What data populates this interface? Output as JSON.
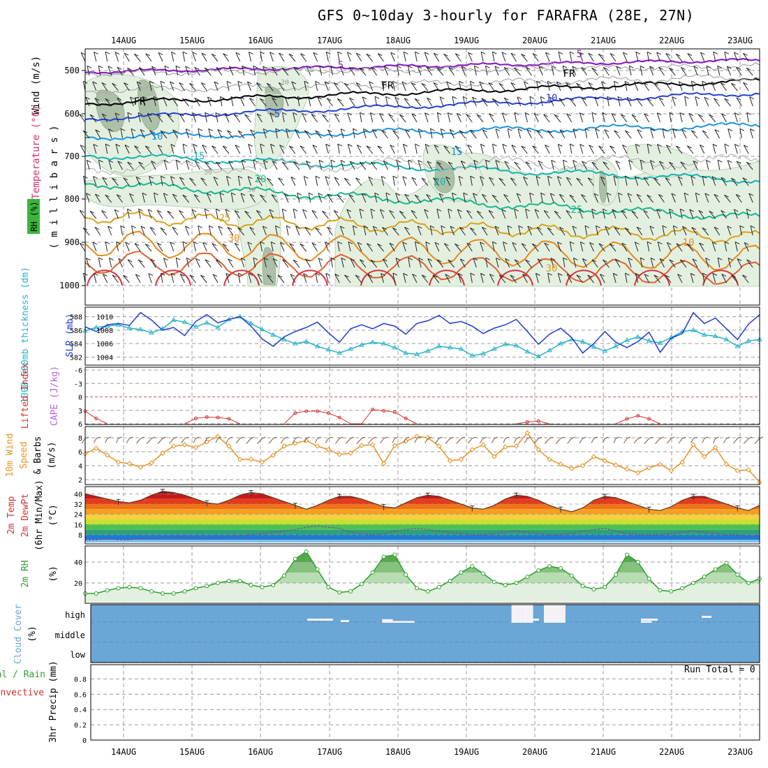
{
  "title": "GFS 0~10day 3-hourly for FARAFRA (28E, 27N)",
  "dates": [
    "14AUG",
    "15AUG",
    "16AUG",
    "17AUG",
    "18AUG",
    "19AUG",
    "20AUG",
    "21AUG",
    "22AUG",
    "23AUG"
  ],
  "run_total": "Run Total = 0",
  "colors": {
    "temp_red": "#d63030",
    "rh_green": "#2ea02e",
    "cyan": "#27b3c8",
    "slp_blue": "#1f3bd0",
    "cape_purple": "#b565d8",
    "orange": "#e59224",
    "cloud_blue": "#6aa6d6"
  },
  "panels": {
    "upper": {
      "ylabel_wind": "Wind (m/s)",
      "ylabel_temp": "Temperature (°C)",
      "ylabel_mb": "( m i l l i b a r s )",
      "rh_label": "RH (%)",
      "yticks": [
        "500",
        "600",
        "700",
        "800",
        "900",
        "1000"
      ],
      "contour_labels": [
        "5",
        "FR",
        "FR",
        "FR",
        "5",
        "5",
        "10",
        "10",
        "15",
        "15",
        "20",
        "20",
        "25",
        "25",
        "30",
        "30",
        "10",
        "10",
        "30",
        "30",
        "30",
        "30"
      ]
    },
    "thickness": {
      "ylabel_left": "1000-500mb thickness (dm)",
      "ylabel_right": "SLP (mb)",
      "yticks_left": [
        "588",
        "586",
        "584",
        "582"
      ],
      "yticks_right": [
        "1010",
        "1008",
        "1006",
        "1004"
      ]
    },
    "lifted": {
      "ylabel_left": "Lifted Index",
      "ylabel_right": "CAPE (J/kg)",
      "yticks": [
        "-6",
        "-3",
        "0",
        "3",
        "6"
      ]
    },
    "wind10": {
      "ylabel1": "10m Wind",
      "ylabel2": "Speed",
      "ylabel3": "& Barbs",
      "ylabel_unit": "(m/s)",
      "yticks": [
        "8",
        "6",
        "4",
        "2"
      ]
    },
    "temp2m": {
      "ylabel1": "2m Temp",
      "ylabel2": "2m DewPt",
      "ylabel3": "(6hr Min/Max)",
      "ylabel_unit": "(°C)",
      "yticks": [
        "40",
        "32",
        "24",
        "16",
        "8"
      ]
    },
    "rh2m": {
      "ylabel": "2m RH",
      "ylabel_unit": "(%)",
      "yticks": [
        "40",
        "20"
      ]
    },
    "cloud": {
      "ylabel": "Cloud Cover",
      "ylabel_unit": "(%)",
      "levels": [
        "high",
        "middle",
        "low"
      ]
    },
    "precip": {
      "ylabel_left1": "Total / Rain",
      "ylabel_left2": "Convective",
      "ylabel": "3hr Precip (mm)",
      "yticks": [
        "0.8",
        "0.6",
        "0.4",
        "0.2",
        "0"
      ]
    }
  },
  "chart_data": [
    {
      "type": "line",
      "name": "thickness-slp",
      "x_labels": [
        "14AUG",
        "15AUG",
        "16AUG",
        "17AUG",
        "18AUG",
        "19AUG",
        "20AUG",
        "21AUG",
        "22AUG",
        "23AUG"
      ],
      "series": [
        {
          "name": "1000-500mb thickness (dm)",
          "axis": "left",
          "values": [
            585.9,
            586.4,
            586.6,
            586.8,
            586.3,
            586.1,
            585.6,
            586.2,
            587.5,
            587.2,
            586.5,
            587.1,
            586.4,
            587.6,
            588.0,
            587.0,
            586.1,
            585.3,
            584.6,
            584.0,
            584.3,
            583.6,
            583.1,
            582.6,
            583.2,
            583.8,
            584.2,
            584.0,
            583.4,
            582.6,
            582.4,
            582.9,
            583.6,
            583.4,
            583.2,
            582.2,
            582.5,
            583.2,
            583.9,
            583.7,
            582.8,
            582.1,
            583.0,
            584.0,
            584.6,
            584.3,
            583.5,
            582.9,
            583.6,
            584.5,
            585.0,
            584.4,
            584.1,
            584.9,
            585.8,
            586.0,
            585.3,
            585.1,
            584.6,
            583.6,
            584.4,
            584.6
          ]
        },
        {
          "name": "SLP (mb)",
          "axis": "right",
          "values": [
            1008.5,
            1007.8,
            1008.8,
            1009.0,
            1008.7,
            1010.6,
            1009.5,
            1008.0,
            1008.4,
            1007.2,
            1009.3,
            1010.3,
            1009.1,
            1009.6,
            1010.0,
            1008.6,
            1006.7,
            1005.6,
            1007.0,
            1007.8,
            1008.4,
            1009.2,
            1007.6,
            1006.2,
            1008.2,
            1008.8,
            1008.2,
            1009.0,
            1008.6,
            1007.4,
            1009.0,
            1009.4,
            1010.2,
            1009.0,
            1009.3,
            1008.6,
            1007.5,
            1008.3,
            1008.8,
            1009.6,
            1007.8,
            1005.9,
            1007.4,
            1008.3,
            1006.9,
            1004.6,
            1006.0,
            1007.8,
            1006.2,
            1005.4,
            1006.3,
            1007.7,
            1004.7,
            1006.8,
            1007.5,
            1010.6,
            1009.0,
            1009.8,
            1008.2,
            1006.6,
            1008.9,
            1010.3
          ]
        }
      ]
    },
    {
      "type": "line",
      "name": "lifted-index",
      "series": [
        {
          "name": "Lifted Index",
          "values": [
            3.2,
            4.8,
            6,
            6,
            6,
            6,
            6,
            6,
            6,
            6,
            4.8,
            4.5,
            4.6,
            4.9,
            6,
            6,
            6,
            6,
            6,
            3.6,
            3.2,
            3.2,
            3.6,
            4.6,
            6,
            6,
            2.8,
            3.1,
            3.4,
            4.8,
            6,
            6,
            6,
            6,
            6,
            6,
            6,
            6,
            6,
            6,
            5.6,
            5.4,
            6,
            6,
            6,
            6,
            6,
            6,
            6,
            4.9,
            4.2,
            4.9,
            6,
            6,
            6,
            6,
            6,
            6,
            6,
            6,
            6,
            6
          ]
        }
      ]
    },
    {
      "type": "line",
      "name": "10m-wind",
      "series": [
        {
          "name": "10m Wind Speed",
          "values": [
            5.7,
            6.5,
            5.5,
            4.5,
            4.3,
            3.8,
            4.4,
            5.8,
            6.8,
            7.0,
            6.6,
            7.4,
            8.2,
            6.8,
            4.9,
            4.9,
            4.5,
            5.5,
            6.8,
            7.2,
            7.6,
            6.8,
            6.3,
            5.6,
            5.8,
            6.9,
            7.0,
            4.3,
            6.9,
            7.5,
            8.2,
            8.0,
            6.8,
            4.7,
            4.9,
            6.3,
            7.0,
            5.3,
            6.7,
            6.8,
            8.7,
            6.3,
            4.9,
            4.2,
            3.6,
            4.0,
            5.3,
            4.7,
            4.1,
            3.5,
            3.0,
            3.7,
            4.2,
            3.3,
            4.5,
            7.0,
            5.3,
            6.6,
            4.2,
            3.3,
            3.4,
            1.6
          ]
        }
      ]
    },
    {
      "type": "area",
      "name": "2m-temp-dewpt",
      "series": [
        {
          "name": "2m Temp",
          "values": [
            40,
            38,
            36,
            34,
            33,
            35,
            39,
            42,
            41,
            39,
            36,
            33,
            32,
            35,
            39,
            41,
            40,
            37,
            34,
            31,
            28,
            31,
            35,
            38,
            38,
            36,
            33,
            30,
            29,
            33,
            37,
            39,
            38,
            35,
            32,
            29,
            28,
            31,
            36,
            39,
            38,
            35,
            31,
            28,
            26,
            29,
            35,
            38,
            37,
            34,
            31,
            28,
            27,
            30,
            35,
            38,
            38,
            35,
            32,
            29,
            27,
            31
          ]
        },
        {
          "name": "2m DewPt",
          "values": [
            4,
            4,
            5,
            4,
            4,
            5,
            5,
            6,
            7,
            6,
            6,
            5,
            6,
            7,
            7,
            8,
            9,
            10,
            11,
            12,
            14,
            15,
            14,
            13,
            10,
            9,
            8,
            9,
            11,
            12,
            13,
            12,
            11,
            10,
            9,
            8,
            8,
            9,
            10,
            11,
            10,
            9,
            8,
            8,
            9,
            11,
            12,
            13,
            11,
            9,
            8,
            8,
            8,
            9,
            10,
            11,
            10,
            9,
            8,
            8,
            7,
            7
          ]
        }
      ]
    },
    {
      "type": "area",
      "name": "2m-rh",
      "series": [
        {
          "name": "2m RH",
          "values": [
            10,
            10,
            13,
            15,
            16,
            15,
            12,
            10,
            10,
            12,
            15,
            17,
            20,
            22,
            22,
            18,
            16,
            18,
            27,
            43,
            50,
            33,
            16,
            11,
            12,
            19,
            30,
            45,
            47,
            28,
            15,
            12,
            16,
            22,
            30,
            36,
            29,
            21,
            18,
            20,
            26,
            32,
            36,
            34,
            27,
            17,
            14,
            16,
            28,
            47,
            40,
            24,
            13,
            12,
            15,
            20,
            26,
            33,
            39,
            28,
            20,
            24
          ]
        }
      ]
    },
    {
      "type": "bar",
      "name": "cloud-cover",
      "levels": [
        "high",
        "middle",
        "low"
      ],
      "series": [
        {
          "name": "high cloud gaps (clear)",
          "values": [
            0,
            0,
            0,
            0,
            0,
            0,
            0,
            0,
            0,
            0,
            0,
            0,
            0,
            0,
            0,
            0,
            0,
            0,
            0,
            0,
            0,
            0,
            0,
            0,
            0,
            0,
            0,
            20,
            10,
            10,
            0,
            0,
            0,
            0,
            0,
            0,
            0,
            0,
            0,
            100,
            100,
            0,
            100,
            100,
            0,
            0,
            0,
            0,
            0,
            0,
            0,
            10,
            0,
            0,
            0,
            0,
            0,
            0,
            0,
            0,
            0,
            0
          ]
        }
      ]
    },
    {
      "type": "bar",
      "name": "3hr-precip",
      "yticks": [
        0,
        0.2,
        0.4,
        0.6,
        0.8
      ],
      "series": [
        {
          "name": "Total / Rain",
          "values": [
            0,
            0,
            0,
            0,
            0,
            0,
            0,
            0,
            0,
            0,
            0,
            0,
            0,
            0,
            0,
            0,
            0,
            0,
            0,
            0,
            0,
            0,
            0,
            0,
            0,
            0,
            0,
            0,
            0,
            0,
            0,
            0,
            0,
            0,
            0,
            0,
            0,
            0,
            0,
            0,
            0,
            0,
            0,
            0,
            0,
            0,
            0,
            0,
            0,
            0,
            0,
            0,
            0,
            0,
            0,
            0,
            0,
            0,
            0,
            0,
            0,
            0
          ]
        }
      ]
    }
  ]
}
